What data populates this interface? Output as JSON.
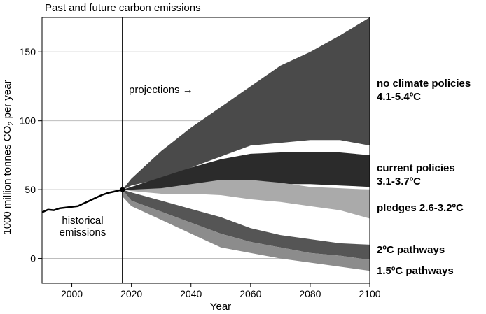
{
  "chart_data": {
    "type": "area",
    "title": "Past and future carbon emissions",
    "xlabel": "Year",
    "ylabel_main": "1000 million tonnes CO",
    "ylabel_sub": "2",
    "ylabel_tail": " per year",
    "xlim": [
      1990,
      2100
    ],
    "ylim": [
      -18,
      175
    ],
    "xticks": [
      2000,
      2020,
      2040,
      2060,
      2080,
      2100
    ],
    "yticks": [
      0,
      50,
      100,
      150
    ],
    "grid": "horizontal",
    "divider_year": 2017,
    "annotations": {
      "projections": "projections →",
      "historical_line1": "historical",
      "historical_line2": "emissions"
    },
    "historical": {
      "x": [
        1990,
        1992,
        1994,
        1996,
        1998,
        2000,
        2002,
        2004,
        2006,
        2008,
        2010,
        2012,
        2014,
        2016,
        2017
      ],
      "y": [
        33.5,
        35.5,
        35,
        36.5,
        37,
        37.5,
        38,
        40,
        42,
        44,
        46,
        47.5,
        48.5,
        49.5,
        50
      ]
    },
    "series": [
      {
        "name": "no climate policies",
        "range_label": "4.1-5.4ºC",
        "color": "#4a4a4a",
        "x": [
          2017,
          2020,
          2030,
          2040,
          2050,
          2060,
          2070,
          2080,
          2090,
          2100
        ],
        "upper": [
          50,
          58,
          78,
          95,
          110,
          125,
          140,
          150,
          162,
          175
        ],
        "lower": [
          50,
          53,
          58,
          66,
          74,
          82,
          84,
          86,
          86,
          82
        ]
      },
      {
        "name": "current policies",
        "range_label": "3.1-3.7ºC",
        "color": "#2b2b2b",
        "x": [
          2017,
          2020,
          2030,
          2040,
          2050,
          2060,
          2070,
          2080,
          2090,
          2100
        ],
        "upper": [
          50,
          52,
          59,
          66,
          72,
          76,
          77,
          77,
          77,
          75
        ],
        "lower": [
          50,
          50,
          50,
          51,
          52,
          54,
          54,
          54,
          53,
          52
        ]
      },
      {
        "name": "pledges 2.6-3.2ºC",
        "range_label": "",
        "color": "#aaaaaa",
        "x": [
          2017,
          2020,
          2030,
          2040,
          2050,
          2060,
          2070,
          2080,
          2090,
          2100
        ],
        "upper": [
          50,
          50,
          51,
          54,
          57,
          57,
          55,
          52,
          51,
          50
        ],
        "lower": [
          50,
          49,
          47,
          47,
          46,
          43,
          41,
          38,
          35,
          29
        ]
      },
      {
        "name": "2ºC pathways",
        "range_label": "",
        "color": "#555555",
        "x": [
          2017,
          2020,
          2030,
          2040,
          2050,
          2060,
          2070,
          2080,
          2090,
          2100
        ],
        "upper": [
          50,
          48,
          42,
          36,
          30,
          22,
          17,
          14,
          11,
          10
        ],
        "lower": [
          50,
          42,
          34,
          26,
          18,
          12,
          8,
          4,
          2,
          -1
        ]
      },
      {
        "name": "1.5ºC pathways",
        "range_label": "",
        "color": "#8c8c8c",
        "x": [
          2017,
          2020,
          2030,
          2040,
          2050,
          2060,
          2070,
          2080,
          2090,
          2100
        ],
        "upper": [
          50,
          42,
          34,
          26,
          18,
          12,
          8,
          4,
          2,
          -1
        ],
        "lower": [
          45,
          38,
          28,
          18,
          8,
          4,
          0,
          -3,
          -6,
          -9
        ]
      }
    ]
  }
}
